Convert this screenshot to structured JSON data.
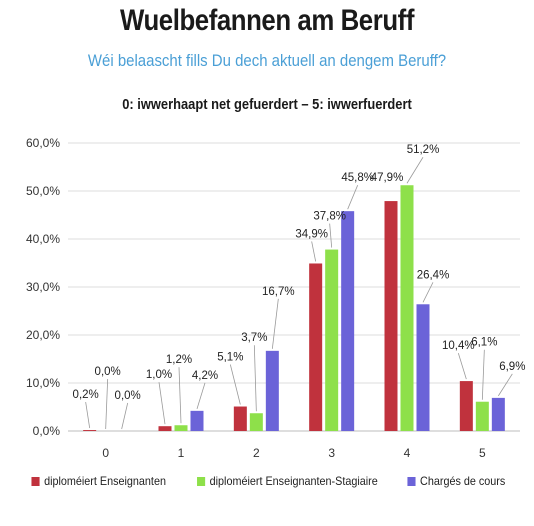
{
  "header": {
    "title": "Wuelbefannen am Beruff",
    "subtitle": "Wéi belaascht fills Du dech aktuell an dengem Beruff?"
  },
  "chart_data": {
    "type": "bar",
    "title": "0: iwwerhaapt net gefuerdert – 5: iwwerfuerdert",
    "xlabel": "",
    "ylabel": "",
    "categories": [
      "0",
      "1",
      "2",
      "3",
      "4",
      "5"
    ],
    "ylim": [
      0,
      60
    ],
    "yticks": [
      "0,0%",
      "10,0%",
      "20,0%",
      "30,0%",
      "40,0%",
      "50,0%",
      "60,0%"
    ],
    "grid": true,
    "legend_position": "bottom",
    "series": [
      {
        "name": "diploméiert Enseignanten",
        "color": "#c0323d",
        "values": [
          0.2,
          1.0,
          5.1,
          34.9,
          47.9,
          10.4
        ],
        "labels": [
          "0,2%",
          "1,0%",
          "5,1%",
          "34,9%",
          "47,9%",
          "10,4%"
        ]
      },
      {
        "name": "diploméiert Enseignanten-Stagiaire",
        "color": "#8ee04a",
        "values": [
          0.0,
          1.2,
          3.7,
          37.8,
          51.2,
          6.1
        ],
        "labels": [
          "0,0%",
          "1,2%",
          "3,7%",
          "37,8%",
          "51,2%",
          "6,1%"
        ]
      },
      {
        "name": "Chargés de cours",
        "color": "#6b63d8",
        "values": [
          0.0,
          4.2,
          16.7,
          45.8,
          26.4,
          6.9
        ],
        "labels": [
          "0,0%",
          "4,2%",
          "16,7%",
          "45,8%",
          "26,4%",
          "6,9%"
        ]
      }
    ]
  }
}
